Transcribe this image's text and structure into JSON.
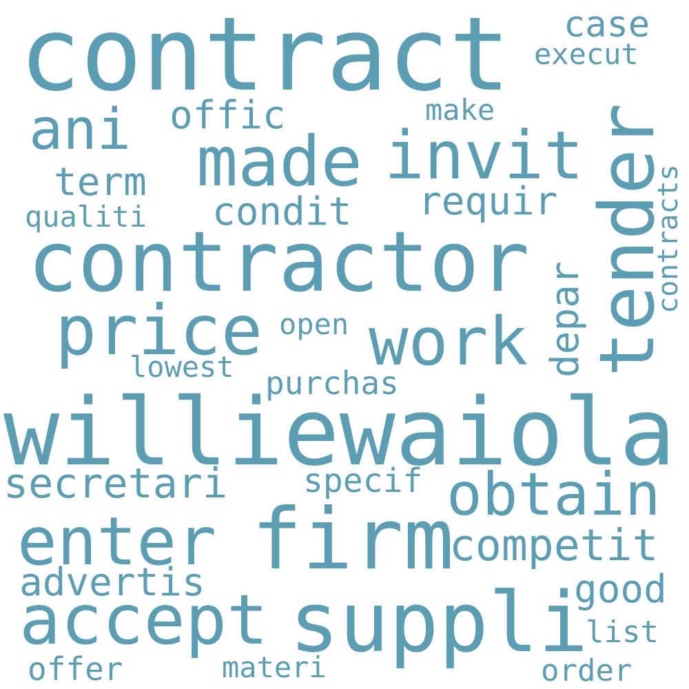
{
  "word_color": "#5b9eb3",
  "background": "#ffffff",
  "words": {
    "contract": "contract",
    "contractor": "contractor",
    "williewaiola": "williewaiola",
    "tender": "tender",
    "firm": "firm",
    "suppli": "suppli",
    "made": "made",
    "invit": "invit",
    "price": "price",
    "work": "work",
    "accept": "accept",
    "enter": "enter",
    "obtain": "obtain",
    "ani": "ani",
    "competit": "competit",
    "depar": "depar",
    "secretari": "secretari",
    "advertis": "advertis",
    "condit": "condit",
    "requir": "requir",
    "term": "term",
    "offic": "offic",
    "case": "case",
    "execut": "execut",
    "make": "make",
    "good": "good",
    "purchas": "purchas",
    "specif": "specif",
    "qualiti": "qualiti",
    "contracts": "contracts",
    "open": "open",
    "lowest": "lowest",
    "list": "list",
    "offer": "offer",
    "materi": "materi",
    "order": "order"
  }
}
